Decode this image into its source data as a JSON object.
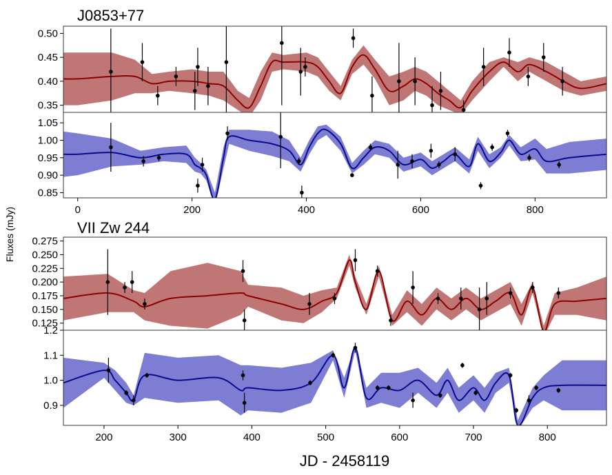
{
  "figure": {
    "ylabel": "Fluxes (mJy)",
    "xlabel": "JD - 2458119",
    "colors": {
      "red_band": "#b65e5e",
      "red_line": "#8b0000",
      "blue_band": "#6666cc",
      "blue_line": "#0a0a8c",
      "errorbar": "#000000",
      "point": "#000000"
    }
  },
  "chart_data": [
    {
      "type": "line",
      "group": "J0853+77",
      "title": "J0853+77",
      "band": "red",
      "xlim": [
        -25,
        925
      ],
      "ylim": [
        0.335,
        0.515
      ],
      "yticks": [
        0.35,
        0.4,
        0.45,
        0.5
      ],
      "ytick_labels": [
        "0.35",
        "0.40",
        "0.45",
        "0.50"
      ],
      "curve": {
        "x": [
          -25,
          0,
          60,
          100,
          130,
          160,
          200,
          230,
          255,
          280,
          300,
          320,
          340,
          360,
          400,
          420,
          440,
          460,
          480,
          500,
          520,
          545,
          570,
          590,
          610,
          630,
          650,
          670,
          690,
          720,
          745,
          770,
          790,
          820,
          850,
          880,
          925
        ],
        "y": [
          0.405,
          0.405,
          0.41,
          0.41,
          0.395,
          0.4,
          0.4,
          0.395,
          0.39,
          0.36,
          0.345,
          0.39,
          0.44,
          0.44,
          0.44,
          0.43,
          0.4,
          0.375,
          0.43,
          0.455,
          0.425,
          0.38,
          0.39,
          0.405,
          0.395,
          0.375,
          0.36,
          0.345,
          0.38,
          0.42,
          0.44,
          0.42,
          0.435,
          0.42,
          0.4,
          0.385,
          0.395
        ],
        "halfwidth": [
          0.055,
          0.055,
          0.05,
          0.035,
          0.02,
          0.02,
          0.025,
          0.025,
          0.03,
          0.02,
          0.02,
          0.03,
          0.02,
          0.015,
          0.02,
          0.02,
          0.02,
          0.015,
          0.015,
          0.02,
          0.02,
          0.03,
          0.03,
          0.025,
          0.025,
          0.025,
          0.02,
          0.015,
          0.02,
          0.02,
          0.01,
          0.02,
          0.015,
          0.02,
          0.02,
          0.015,
          0.015
        ]
      },
      "points": [
        {
          "x": 58,
          "y": 0.42,
          "err": 0.09
        },
        {
          "x": 113,
          "y": 0.44,
          "err": 0.04
        },
        {
          "x": 140,
          "y": 0.37,
          "err": 0.02
        },
        {
          "x": 172,
          "y": 0.41,
          "err": 0.02
        },
        {
          "x": 205,
          "y": 0.38,
          "err": 0.04
        },
        {
          "x": 210,
          "y": 0.43,
          "err": 0.04
        },
        {
          "x": 228,
          "y": 0.39,
          "err": 0.04
        },
        {
          "x": 260,
          "y": 0.44,
          "err": 0.11
        },
        {
          "x": 357,
          "y": 0.48,
          "err": 0.13
        },
        {
          "x": 390,
          "y": 0.42,
          "err": 0.05
        },
        {
          "x": 398,
          "y": 0.43,
          "err": 0.02
        },
        {
          "x": 482,
          "y": 0.49,
          "err": 0.02
        },
        {
          "x": 515,
          "y": 0.37,
          "err": 0.04
        },
        {
          "x": 562,
          "y": 0.4,
          "err": 0.08
        },
        {
          "x": 590,
          "y": 0.4,
          "err": 0.05
        },
        {
          "x": 620,
          "y": 0.35,
          "err": 0.04
        },
        {
          "x": 635,
          "y": 0.38,
          "err": 0.04
        },
        {
          "x": 675,
          "y": 0.34,
          "err": 0.02
        },
        {
          "x": 710,
          "y": 0.43,
          "err": 0.04
        },
        {
          "x": 755,
          "y": 0.46,
          "err": 0.03
        },
        {
          "x": 788,
          "y": 0.41,
          "err": 0.02
        },
        {
          "x": 815,
          "y": 0.45,
          "err": 0.03
        },
        {
          "x": 848,
          "y": 0.4,
          "err": 0.03
        }
      ]
    },
    {
      "type": "line",
      "group": "J0853+77",
      "band": "blue",
      "xlim": [
        -25,
        925
      ],
      "ylim": [
        0.835,
        1.08
      ],
      "yticks": [
        0.85,
        0.9,
        0.95,
        1.0,
        1.05
      ],
      "ytick_labels": [
        "0.85",
        "0.90",
        "0.95",
        "1.00",
        "1.05"
      ],
      "xticks": [
        0,
        200,
        400,
        600,
        800
      ],
      "xtick_labels": [
        "0",
        "200",
        "400",
        "600",
        "800"
      ],
      "curve": {
        "x": [
          -25,
          0,
          60,
          110,
          150,
          190,
          205,
          215,
          225,
          240,
          255,
          265,
          300,
          340,
          370,
          390,
          405,
          420,
          435,
          460,
          480,
          500,
          520,
          545,
          570,
          600,
          620,
          640,
          660,
          685,
          700,
          720,
          740,
          755,
          775,
          800,
          820,
          860,
          925
        ],
        "y": [
          0.96,
          0.96,
          0.965,
          0.95,
          0.96,
          0.96,
          0.93,
          0.92,
          0.9,
          0.83,
          0.95,
          1.01,
          1.0,
          0.99,
          0.97,
          0.93,
          0.98,
          1.02,
          1.03,
          0.99,
          0.92,
          0.95,
          0.98,
          0.97,
          0.93,
          0.945,
          0.92,
          0.94,
          0.96,
          0.925,
          0.99,
          0.94,
          0.965,
          1.0,
          0.96,
          0.975,
          0.94,
          0.95,
          0.96
        ],
        "halfwidth": [
          0.065,
          0.06,
          0.04,
          0.02,
          0.02,
          0.025,
          0.02,
          0.015,
          0.015,
          0.02,
          0.03,
          0.02,
          0.03,
          0.035,
          0.03,
          0.02,
          0.02,
          0.02,
          0.015,
          0.02,
          0.015,
          0.02,
          0.02,
          0.02,
          0.02,
          0.02,
          0.02,
          0.02,
          0.02,
          0.02,
          0.02,
          0.02,
          0.015,
          0.015,
          0.02,
          0.03,
          0.035,
          0.045,
          0.045
        ]
      },
      "points": [
        {
          "x": 58,
          "y": 0.98,
          "err": 0.07
        },
        {
          "x": 115,
          "y": 0.94,
          "err": 0.015
        },
        {
          "x": 142,
          "y": 0.95,
          "err": 0.01
        },
        {
          "x": 210,
          "y": 0.87,
          "err": 0.02
        },
        {
          "x": 218,
          "y": 0.93,
          "err": 0.02
        },
        {
          "x": 262,
          "y": 1.02,
          "err": 0.02
        },
        {
          "x": 355,
          "y": 1.01,
          "err": 0.09
        },
        {
          "x": 387,
          "y": 0.94,
          "err": 0.01
        },
        {
          "x": 392,
          "y": 0.85,
          "err": 0.02
        },
        {
          "x": 480,
          "y": 0.9,
          "err": 0.005
        },
        {
          "x": 512,
          "y": 0.98,
          "err": 0.01
        },
        {
          "x": 560,
          "y": 0.93,
          "err": 0.04
        },
        {
          "x": 585,
          "y": 0.94,
          "err": 0.02
        },
        {
          "x": 618,
          "y": 0.97,
          "err": 0.02
        },
        {
          "x": 632,
          "y": 0.93,
          "err": 0.01
        },
        {
          "x": 660,
          "y": 0.96,
          "err": 0.02
        },
        {
          "x": 705,
          "y": 0.87,
          "err": 0.01
        },
        {
          "x": 725,
          "y": 0.98,
          "err": 0.01
        },
        {
          "x": 752,
          "y": 1.02,
          "err": 0.01
        },
        {
          "x": 790,
          "y": 0.95,
          "err": 0.01
        },
        {
          "x": 842,
          "y": 0.93,
          "err": 0.01
        }
      ]
    },
    {
      "type": "line",
      "group": "VII Zw 244",
      "title": "VII Zw 244",
      "band": "red",
      "xlim": [
        145,
        880
      ],
      "ylim": [
        0.112,
        0.282
      ],
      "yticks": [
        0.125,
        0.15,
        0.175,
        0.2,
        0.225,
        0.25,
        0.275
      ],
      "ytick_labels": [
        "0.125",
        "0.150",
        "0.175",
        "0.200",
        "0.225",
        "0.250",
        "0.275"
      ],
      "curve": {
        "x": [
          145,
          205,
          240,
          255,
          290,
          340,
          385,
          395,
          440,
          470,
          495,
          515,
          532,
          540,
          555,
          572,
          590,
          610,
          630,
          650,
          670,
          690,
          710,
          730,
          750,
          765,
          780,
          795,
          810,
          840,
          880
        ],
        "y": [
          0.17,
          0.18,
          0.165,
          0.155,
          0.17,
          0.175,
          0.18,
          0.175,
          0.16,
          0.15,
          0.165,
          0.18,
          0.24,
          0.2,
          0.15,
          0.22,
          0.13,
          0.165,
          0.14,
          0.17,
          0.15,
          0.17,
          0.15,
          0.165,
          0.18,
          0.14,
          0.19,
          0.11,
          0.16,
          0.165,
          0.17
        ],
        "halfwidth": [
          0.04,
          0.035,
          0.02,
          0.025,
          0.05,
          0.06,
          0.04,
          0.02,
          0.03,
          0.025,
          0.02,
          0.01,
          0.01,
          0.01,
          0.01,
          0.01,
          0.01,
          0.02,
          0.02,
          0.02,
          0.02,
          0.02,
          0.02,
          0.02,
          0.02,
          0.02,
          0.01,
          0.01,
          0.02,
          0.025,
          0.04
        ]
      },
      "points": [
        {
          "x": 205,
          "y": 0.2,
          "err": 0.06
        },
        {
          "x": 228,
          "y": 0.19,
          "err": 0.01
        },
        {
          "x": 238,
          "y": 0.2,
          "err": 0.02
        },
        {
          "x": 255,
          "y": 0.16,
          "err": 0.01
        },
        {
          "x": 388,
          "y": 0.22,
          "err": 0.02
        },
        {
          "x": 390,
          "y": 0.13,
          "err": 0.02
        },
        {
          "x": 478,
          "y": 0.16,
          "err": 0.02
        },
        {
          "x": 512,
          "y": 0.17,
          "err": 0.01
        },
        {
          "x": 540,
          "y": 0.24,
          "err": 0.02
        },
        {
          "x": 570,
          "y": 0.22,
          "err": 0.01
        },
        {
          "x": 588,
          "y": 0.13,
          "err": 0.01
        },
        {
          "x": 618,
          "y": 0.19,
          "err": 0.03
        },
        {
          "x": 652,
          "y": 0.17,
          "err": 0.01
        },
        {
          "x": 683,
          "y": 0.17,
          "err": 0.02
        },
        {
          "x": 708,
          "y": 0.15,
          "err": 0.04
        },
        {
          "x": 718,
          "y": 0.17,
          "err": 0.03
        },
        {
          "x": 750,
          "y": 0.18,
          "err": 0.01
        },
        {
          "x": 780,
          "y": 0.19,
          "err": 0.01
        },
        {
          "x": 815,
          "y": 0.18,
          "err": 0.01
        }
      ]
    },
    {
      "type": "line",
      "group": "VII Zw 244",
      "band": "blue",
      "xlim": [
        145,
        880
      ],
      "ylim": [
        0.82,
        1.2
      ],
      "yticks": [
        0.9,
        1.0,
        1.1,
        1.2
      ],
      "ytick_labels": [
        "0.9",
        "1.0",
        "1.1",
        "1.2"
      ],
      "xticks": [
        200,
        300,
        400,
        500,
        600,
        700,
        800
      ],
      "xtick_labels": [
        "200",
        "300",
        "400",
        "500",
        "600",
        "700",
        "800"
      ],
      "curve": {
        "x": [
          145,
          200,
          215,
          230,
          240,
          255,
          300,
          355,
          385,
          395,
          440,
          480,
          510,
          525,
          540,
          555,
          575,
          600,
          625,
          650,
          665,
          680,
          700,
          715,
          730,
          748,
          760,
          780,
          795,
          820,
          880
        ],
        "y": [
          0.99,
          1.04,
          1.0,
          0.95,
          0.92,
          1.02,
          1.0,
          1.01,
          0.96,
          0.97,
          0.96,
          0.99,
          1.1,
          0.97,
          1.13,
          0.93,
          0.97,
          0.96,
          1.0,
          0.94,
          1.0,
          0.92,
          0.97,
          0.92,
          0.99,
          1.02,
          0.82,
          0.93,
          0.97,
          0.98,
          0.98
        ],
        "halfwidth": [
          0.1,
          0.03,
          0.04,
          0.04,
          0.02,
          0.09,
          0.09,
          0.09,
          0.1,
          0.09,
          0.09,
          0.08,
          0.02,
          0.04,
          0.01,
          0.04,
          0.06,
          0.07,
          0.05,
          0.05,
          0.05,
          0.05,
          0.05,
          0.05,
          0.04,
          0.03,
          0.02,
          0.04,
          0.05,
          0.1,
          0.1
        ]
      },
      "points": [
        {
          "x": 206,
          "y": 1.04,
          "err": 0.05
        },
        {
          "x": 230,
          "y": 0.95,
          "err": 0.01
        },
        {
          "x": 240,
          "y": 0.92,
          "err": 0.02
        },
        {
          "x": 258,
          "y": 1.02,
          "err": 0.01
        },
        {
          "x": 388,
          "y": 1.02,
          "err": 0.02
        },
        {
          "x": 390,
          "y": 0.91,
          "err": 0.04
        },
        {
          "x": 479,
          "y": 0.99,
          "err": 0.01
        },
        {
          "x": 510,
          "y": 1.1,
          "err": 0.01
        },
        {
          "x": 540,
          "y": 1.13,
          "err": 0.02
        },
        {
          "x": 570,
          "y": 0.97,
          "err": 0.01
        },
        {
          "x": 585,
          "y": 0.97,
          "err": 0.01
        },
        {
          "x": 618,
          "y": 0.92,
          "err": 0.03
        },
        {
          "x": 655,
          "y": 0.94,
          "err": 0.01
        },
        {
          "x": 685,
          "y": 1.06,
          "err": 0.01
        },
        {
          "x": 703,
          "y": 0.95,
          "err": 0.01
        },
        {
          "x": 750,
          "y": 1.02,
          "err": 0.01
        },
        {
          "x": 758,
          "y": 0.88,
          "err": 0.01
        },
        {
          "x": 775,
          "y": 0.92,
          "err": 0.02
        },
        {
          "x": 785,
          "y": 0.97,
          "err": 0.01
        },
        {
          "x": 815,
          "y": 0.96,
          "err": 0.01
        }
      ]
    }
  ]
}
